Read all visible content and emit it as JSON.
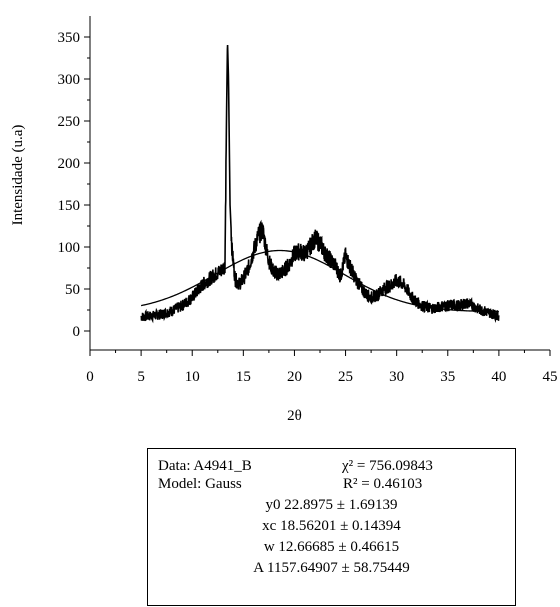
{
  "chart_data": {
    "type": "line",
    "xlabel": "2θ",
    "ylabel": "Intensidade (u.a)",
    "xlim": [
      0,
      45
    ],
    "ylim": [
      0,
      350
    ],
    "x_ticks": [
      0,
      5,
      10,
      15,
      20,
      25,
      30,
      35,
      40,
      45
    ],
    "y_ticks": [
      0,
      50,
      100,
      150,
      200,
      250,
      300,
      350
    ],
    "grid": false,
    "series": [
      {
        "name": "",
        "style": "noisy data",
        "x": [
          5.0,
          6.0,
          7.0,
          8.0,
          9.0,
          10.0,
          11.0,
          12.0,
          12.8,
          13.2,
          13.35,
          13.45,
          13.55,
          13.7,
          13.9,
          14.2,
          14.6,
          15.0,
          15.5,
          16.0,
          16.5,
          16.9,
          17.2,
          17.6,
          18.0,
          18.5,
          19.0,
          19.5,
          20.0,
          20.5,
          21.0,
          21.5,
          22.0,
          22.5,
          23.0,
          23.5,
          24.0,
          24.5,
          25.0,
          25.5,
          26.0,
          26.5,
          27.0,
          27.5,
          28.0,
          28.5,
          29.0,
          29.5,
          30.0,
          30.5,
          31.0,
          31.5,
          32.0,
          32.5,
          33.0,
          33.5,
          34.0,
          34.5,
          35.0,
          35.5,
          36.0,
          36.5,
          37.0,
          37.5,
          38.0,
          38.5,
          39.0,
          39.5,
          40.0
        ],
        "y": [
          17,
          18,
          20,
          24,
          30,
          40,
          55,
          65,
          72,
          78,
          250,
          345,
          300,
          150,
          95,
          62,
          56,
          62,
          75,
          95,
          115,
          120,
          100,
          80,
          70,
          68,
          72,
          80,
          92,
          95,
          92,
          100,
          110,
          105,
          92,
          85,
          78,
          65,
          90,
          75,
          62,
          52,
          44,
          40,
          42,
          48,
          52,
          55,
          60,
          57,
          50,
          40,
          34,
          30,
          28,
          27,
          28,
          30,
          30,
          31,
          30,
          32,
          33,
          30,
          26,
          24,
          22,
          20,
          18
        ]
      },
      {
        "name": "",
        "style": "Gaussian fit",
        "model": {
          "y0": 22.8975,
          "xc": 18.56201,
          "w": 12.66685,
          "A": 1157.64907
        },
        "x_range": [
          5,
          40
        ]
      }
    ]
  },
  "fit_box": {
    "data_label": "Data: A4941_B",
    "model_label": "Model: Gauss",
    "chi2": "χ² = 756.09843",
    "r2": "R² = 0.46103",
    "params": [
      "y0 22.8975 ± 1.69139",
      "xc 18.56201 ± 0.14394",
      "w 12.66685 ± 0.46615",
      "A 1157.64907 ± 58.75449"
    ]
  }
}
